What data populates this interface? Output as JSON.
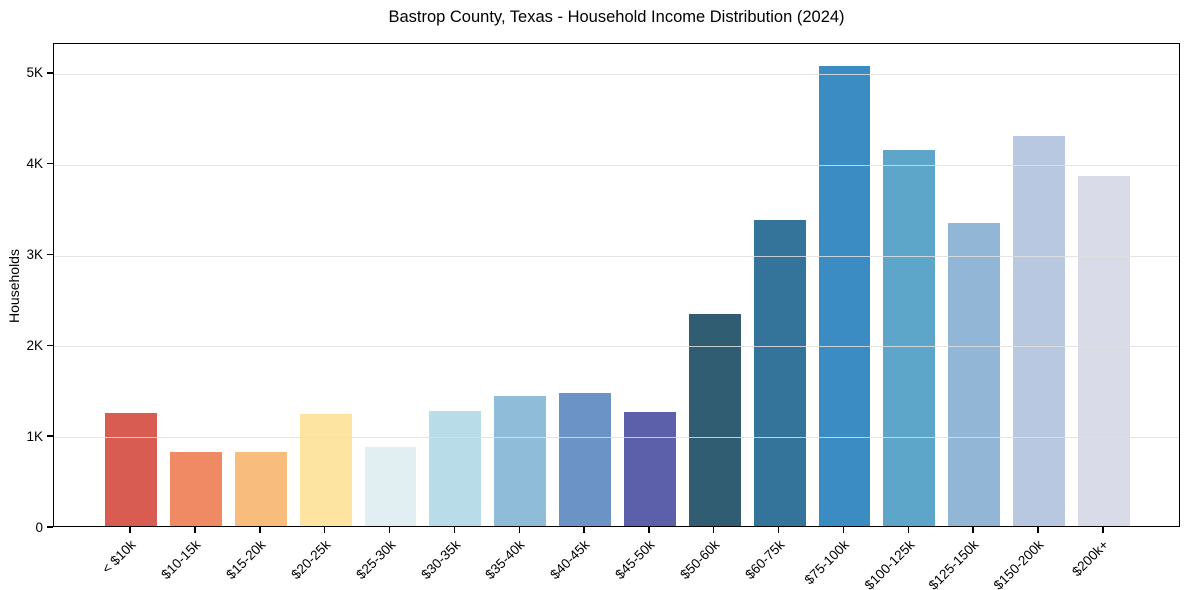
{
  "chart_data": {
    "type": "bar",
    "title": "Bastrop County, Texas - Household Income Distribution (2024)",
    "xlabel": "",
    "ylabel": "Households",
    "categories": [
      "< $10k",
      "$10-15k",
      "$15-20k",
      "$20-25k",
      "$25-30k",
      "$30-35k",
      "$35-40k",
      "$40-45k",
      "$45-50k",
      "$50-60k",
      "$60-75k",
      "$75-100k",
      "$100-125k",
      "$125-150k",
      "$150-200k",
      "$200k+"
    ],
    "values": [
      1250,
      810,
      820,
      1230,
      870,
      1270,
      1430,
      1460,
      1260,
      2340,
      3370,
      5070,
      4140,
      3340,
      4290,
      3850
    ],
    "bar_colors": [
      "#d85c52",
      "#f08a65",
      "#f8bc7d",
      "#fde4a0",
      "#e2eff2",
      "#b9dce9",
      "#8fbcd9",
      "#6b93c6",
      "#5c60ab",
      "#315d72",
      "#34739a",
      "#3a8cc3",
      "#5da6c9",
      "#92b7d6",
      "#b9c8e1",
      "#d9dbe9"
    ],
    "ytick_values": [
      0,
      1000,
      2000,
      3000,
      4000,
      5000
    ],
    "ytick_labels": [
      "0",
      "1K",
      "2K",
      "3K",
      "4K",
      "5K"
    ],
    "ylim": [
      0,
      5330
    ],
    "grid": "horizontal-only",
    "gridline_color": "#dfdfdf",
    "background_color": "#ffffff",
    "axis_color": "#000000",
    "legend": "none",
    "xtick_rotation_deg": 45
  }
}
